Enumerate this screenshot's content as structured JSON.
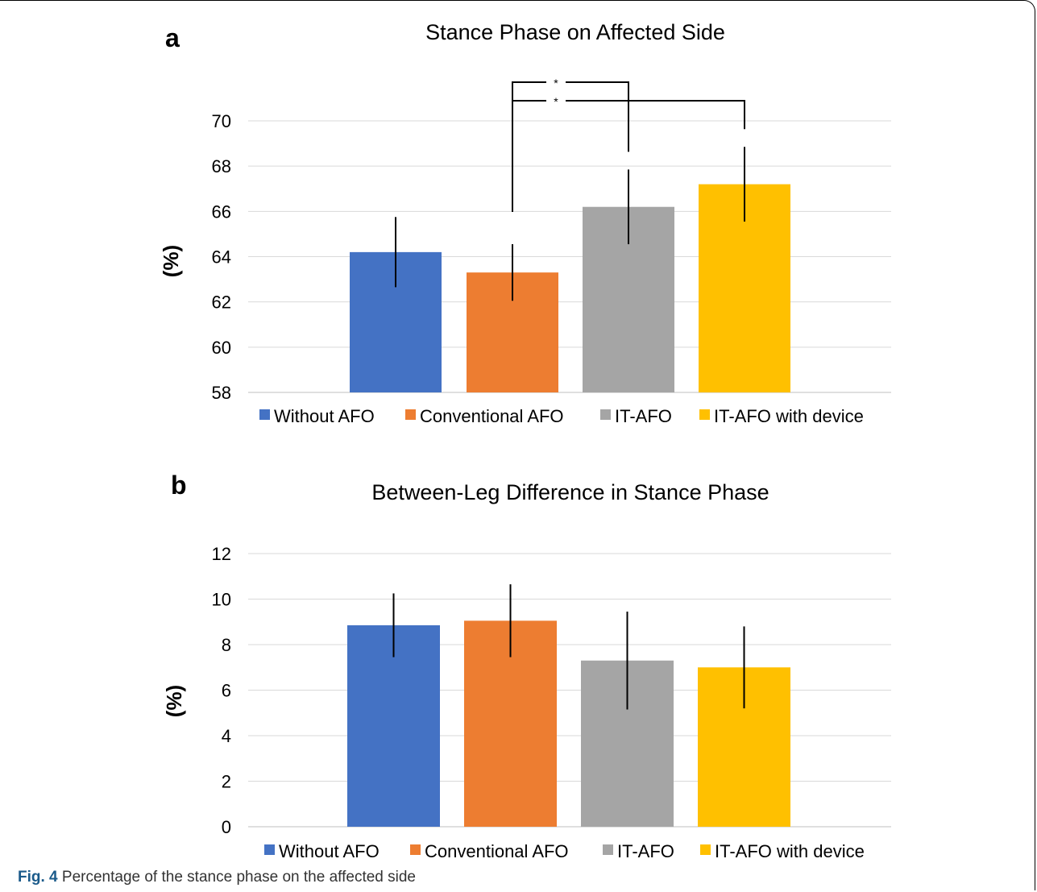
{
  "caption": {
    "label": "Fig. 4",
    "text": "Percentage of the stance phase on the affected side"
  },
  "colors": {
    "series": [
      "#4472C4",
      "#ED7D31",
      "#A5A5A5",
      "#FFC000"
    ],
    "grid": "#d9d9d9",
    "axis_text": "#000000"
  },
  "chart_data": [
    {
      "type": "bar",
      "panel_label": "a",
      "title": "Stance Phase on Affected Side",
      "ylabel": "(%)",
      "xlabel": "",
      "ylim": [
        58,
        70
      ],
      "yticks": [
        "58",
        "60",
        "62",
        "64",
        "66",
        "68",
        "70"
      ],
      "grid": true,
      "legend_position": "bottom",
      "series": [
        {
          "name": "Without AFO",
          "value": 64.2,
          "error": 1.55
        },
        {
          "name": "Conventional AFO",
          "value": 63.3,
          "error": 1.25
        },
        {
          "name": "IT-AFO",
          "value": 66.2,
          "error": 1.65
        },
        {
          "name": "IT-AFO with device",
          "value": 67.2,
          "error": 1.65
        }
      ],
      "significance": [
        {
          "from": "Conventional AFO",
          "to": "IT-AFO",
          "label": "*"
        },
        {
          "from": "Conventional AFO",
          "to": "IT-AFO with device",
          "label": "*"
        }
      ]
    },
    {
      "type": "bar",
      "panel_label": "b",
      "title": "Between-Leg Difference in Stance Phase",
      "ylabel": "(%)",
      "xlabel": "",
      "ylim": [
        0,
        12
      ],
      "yticks": [
        "0",
        "2",
        "4",
        "6",
        "8",
        "10",
        "12"
      ],
      "grid": true,
      "legend_position": "bottom",
      "series": [
        {
          "name": "Without AFO",
          "value": 8.85,
          "error": 1.4
        },
        {
          "name": "Conventional AFO",
          "value": 9.05,
          "error": 1.6
        },
        {
          "name": "IT-AFO",
          "value": 7.3,
          "error": 2.15
        },
        {
          "name": "IT-AFO with device",
          "value": 7.0,
          "error": 1.8
        }
      ],
      "significance": []
    }
  ]
}
